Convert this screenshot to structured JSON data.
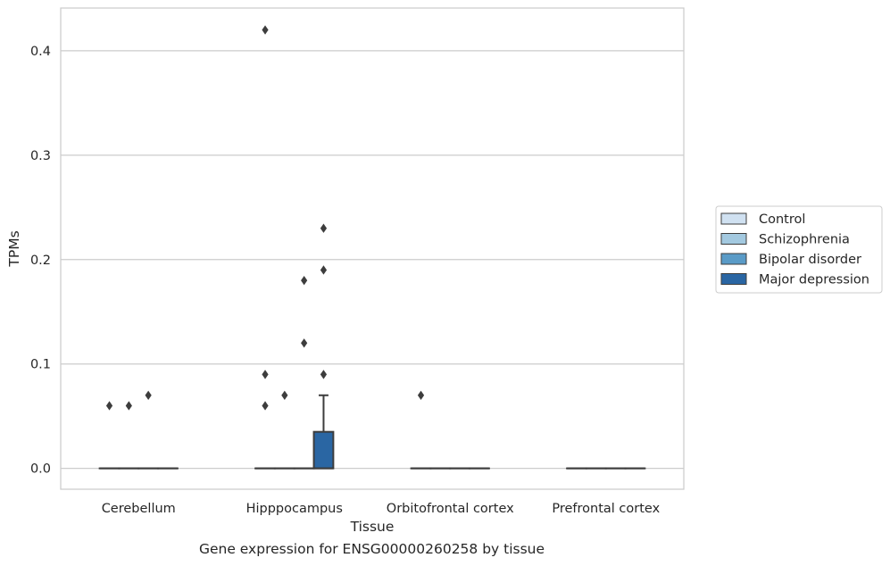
{
  "caption": "Gene expression for ENSG00000260258 by tissue",
  "chart_data": {
    "type": "box",
    "title": "",
    "xlabel": "Tissue",
    "ylabel": "TPMs",
    "ylim": [
      -0.02,
      0.441
    ],
    "yticks": [
      0.0,
      0.1,
      0.2,
      0.3,
      0.4
    ],
    "ytick_labels": [
      "0.0",
      "0.1",
      "0.2",
      "0.3",
      "0.4"
    ],
    "grid": true,
    "legend_placement": "right",
    "categories": [
      "Cerebellum",
      "Hipppocampus",
      "Orbitofrontal cortex",
      "Prefrontal cortex"
    ],
    "series": [
      {
        "name": "Control",
        "color": "#d0e1f1",
        "boxes": [
          {
            "q1": 0,
            "median": 0,
            "q3": 0,
            "whisker_low": 0,
            "whisker_high": 0,
            "outliers": [
              0.06
            ]
          },
          {
            "q1": 0,
            "median": 0,
            "q3": 0,
            "whisker_low": 0,
            "whisker_high": 0,
            "outliers": [
              0.09,
              0.06
            ]
          },
          {
            "q1": 0,
            "median": 0,
            "q3": 0,
            "whisker_low": 0,
            "whisker_high": 0,
            "outliers": [
              0.07
            ]
          },
          {
            "q1": 0,
            "median": 0,
            "q3": 0,
            "whisker_low": 0,
            "whisker_high": 0,
            "outliers": []
          }
        ]
      },
      {
        "name": "Schizophrenia",
        "color": "#a3c9e0",
        "boxes": [
          {
            "q1": 0,
            "median": 0,
            "q3": 0,
            "whisker_low": 0,
            "whisker_high": 0,
            "outliers": [
              0.06
            ]
          },
          {
            "q1": 0,
            "median": 0,
            "q3": 0,
            "whisker_low": 0,
            "whisker_high": 0,
            "outliers": [
              0.07
            ]
          },
          {
            "q1": 0,
            "median": 0,
            "q3": 0,
            "whisker_low": 0,
            "whisker_high": 0,
            "outliers": []
          },
          {
            "q1": 0,
            "median": 0,
            "q3": 0,
            "whisker_low": 0,
            "whisker_high": 0,
            "outliers": []
          }
        ]
      },
      {
        "name": "Bipolar disorder",
        "color": "#5a9bc7",
        "boxes": [
          {
            "q1": 0,
            "median": 0,
            "q3": 0,
            "whisker_low": 0,
            "whisker_high": 0,
            "outliers": [
              0.07
            ]
          },
          {
            "q1": 0,
            "median": 0,
            "q3": 0,
            "whisker_low": 0,
            "whisker_high": 0,
            "outliers": [
              0.18,
              0.12
            ]
          },
          {
            "q1": 0,
            "median": 0,
            "q3": 0,
            "whisker_low": 0,
            "whisker_high": 0,
            "outliers": []
          },
          {
            "q1": 0,
            "median": 0,
            "q3": 0,
            "whisker_low": 0,
            "whisker_high": 0,
            "outliers": []
          }
        ]
      },
      {
        "name": "Major depression",
        "color": "#2a66a3",
        "boxes": [
          {
            "q1": 0,
            "median": 0,
            "q3": 0,
            "whisker_low": 0,
            "whisker_high": 0,
            "outliers": []
          },
          {
            "q1": 0,
            "median": 0,
            "q3": 0.035,
            "whisker_low": 0,
            "whisker_high": 0.07,
            "outliers": [
              0.23,
              0.19,
              0.09
            ]
          },
          {
            "q1": 0,
            "median": 0,
            "q3": 0,
            "whisker_low": 0,
            "whisker_high": 0,
            "outliers": []
          },
          {
            "q1": 0,
            "median": 0,
            "q3": 0,
            "whisker_low": 0,
            "whisker_high": 0,
            "outliers": []
          }
        ]
      }
    ],
    "extra_outliers": [
      {
        "category": "Hipppocampus",
        "series": "Control",
        "value": 0.42
      }
    ]
  }
}
